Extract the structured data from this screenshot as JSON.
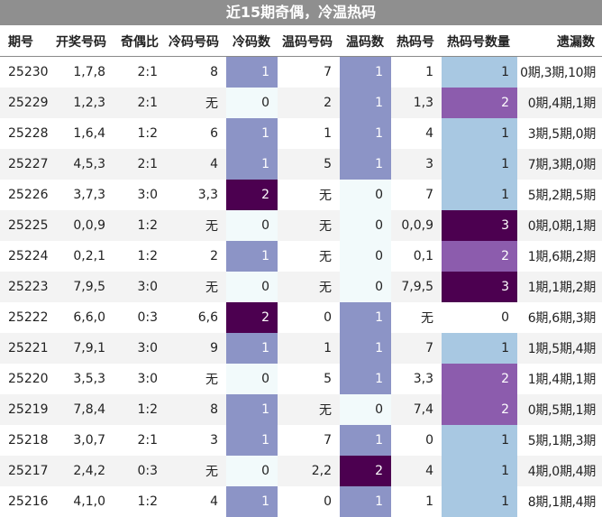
{
  "title": "近15期奇偶，冷温热码",
  "headers": {
    "issue": "期号",
    "numbers": "开奖号码",
    "odd_even": "奇偶比",
    "cold_codes": "冷码号码",
    "cold_count": "冷码数",
    "warm_codes": "温码号码",
    "warm_count": "温码数",
    "hot_codes": "热码号",
    "hot_count": "热码号数量",
    "missing": "遗漏数"
  },
  "colors": {
    "heat_0": "#f2fafb",
    "heat_1": "#8c94c6",
    "heat_2": "#4c0050",
    "hot_1": "#a8c8e2",
    "hot_2": "#8c5cad",
    "hot_3": "#4c0050"
  },
  "rows": [
    {
      "issue": "25230",
      "numbers": "1,7,8",
      "odd_even": "2:1",
      "cold_codes": "8",
      "cold_count": "1",
      "warm_codes": "7",
      "warm_count": "1",
      "hot_codes": "1",
      "hot_count": "1",
      "missing": "0期,3期,10期"
    },
    {
      "issue": "25229",
      "numbers": "1,2,3",
      "odd_even": "2:1",
      "cold_codes": "无",
      "cold_count": "0",
      "warm_codes": "2",
      "warm_count": "1",
      "hot_codes": "1,3",
      "hot_count": "2",
      "missing": "0期,4期,1期"
    },
    {
      "issue": "25228",
      "numbers": "1,6,4",
      "odd_even": "1:2",
      "cold_codes": "6",
      "cold_count": "1",
      "warm_codes": "1",
      "warm_count": "1",
      "hot_codes": "4",
      "hot_count": "1",
      "missing": "3期,5期,0期"
    },
    {
      "issue": "25227",
      "numbers": "4,5,3",
      "odd_even": "2:1",
      "cold_codes": "4",
      "cold_count": "1",
      "warm_codes": "5",
      "warm_count": "1",
      "hot_codes": "3",
      "hot_count": "1",
      "missing": "7期,3期,0期"
    },
    {
      "issue": "25226",
      "numbers": "3,7,3",
      "odd_even": "3:0",
      "cold_codes": "3,3",
      "cold_count": "2",
      "warm_codes": "无",
      "warm_count": "0",
      "hot_codes": "7",
      "hot_count": "1",
      "missing": "5期,2期,5期"
    },
    {
      "issue": "25225",
      "numbers": "0,0,9",
      "odd_even": "1:2",
      "cold_codes": "无",
      "cold_count": "0",
      "warm_codes": "无",
      "warm_count": "0",
      "hot_codes": "0,0,9",
      "hot_count": "3",
      "missing": "0期,0期,1期"
    },
    {
      "issue": "25224",
      "numbers": "0,2,1",
      "odd_even": "1:2",
      "cold_codes": "2",
      "cold_count": "1",
      "warm_codes": "无",
      "warm_count": "0",
      "hot_codes": "0,1",
      "hot_count": "2",
      "missing": "1期,6期,2期"
    },
    {
      "issue": "25223",
      "numbers": "7,9,5",
      "odd_even": "3:0",
      "cold_codes": "无",
      "cold_count": "0",
      "warm_codes": "无",
      "warm_count": "0",
      "hot_codes": "7,9,5",
      "hot_count": "3",
      "missing": "1期,1期,2期"
    },
    {
      "issue": "25222",
      "numbers": "6,6,0",
      "odd_even": "0:3",
      "cold_codes": "6,6",
      "cold_count": "2",
      "warm_codes": "0",
      "warm_count": "1",
      "hot_codes": "无",
      "hot_count": "0",
      "missing": "6期,6期,3期"
    },
    {
      "issue": "25221",
      "numbers": "7,9,1",
      "odd_even": "3:0",
      "cold_codes": "9",
      "cold_count": "1",
      "warm_codes": "1",
      "warm_count": "1",
      "hot_codes": "7",
      "hot_count": "1",
      "missing": "1期,5期,4期"
    },
    {
      "issue": "25220",
      "numbers": "3,5,3",
      "odd_even": "3:0",
      "cold_codes": "无",
      "cold_count": "0",
      "warm_codes": "5",
      "warm_count": "1",
      "hot_codes": "3,3",
      "hot_count": "2",
      "missing": "1期,4期,1期"
    },
    {
      "issue": "25219",
      "numbers": "7,8,4",
      "odd_even": "1:2",
      "cold_codes": "8",
      "cold_count": "1",
      "warm_codes": "无",
      "warm_count": "0",
      "hot_codes": "7,4",
      "hot_count": "2",
      "missing": "0期,5期,1期"
    },
    {
      "issue": "25218",
      "numbers": "3,0,7",
      "odd_even": "2:1",
      "cold_codes": "3",
      "cold_count": "1",
      "warm_codes": "7",
      "warm_count": "1",
      "hot_codes": "0",
      "hot_count": "1",
      "missing": "5期,1期,3期"
    },
    {
      "issue": "25217",
      "numbers": "2,4,2",
      "odd_even": "0:3",
      "cold_codes": "无",
      "cold_count": "0",
      "warm_codes": "2,2",
      "warm_count": "2",
      "hot_codes": "4",
      "hot_count": "1",
      "missing": "4期,0期,4期"
    },
    {
      "issue": "25216",
      "numbers": "4,1,0",
      "odd_even": "1:2",
      "cold_codes": "4",
      "cold_count": "1",
      "warm_codes": "0",
      "warm_count": "1",
      "hot_codes": "1",
      "hot_count": "1",
      "missing": "8期,1期,4期"
    }
  ]
}
